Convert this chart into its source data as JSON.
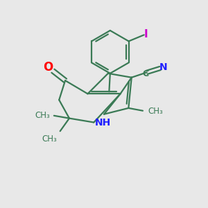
{
  "bg_color": "#e8e8e8",
  "bond_color": "#3a7a55",
  "n_color": "#2020ff",
  "o_color": "#ff0000",
  "i_color": "#cc00cc",
  "c_color": "#3a7a55",
  "line_width": 1.6,
  "fig_size": [
    3.0,
    3.0
  ],
  "dpi": 100,
  "xlim": [
    0,
    10
  ],
  "ylim": [
    0,
    10
  ]
}
